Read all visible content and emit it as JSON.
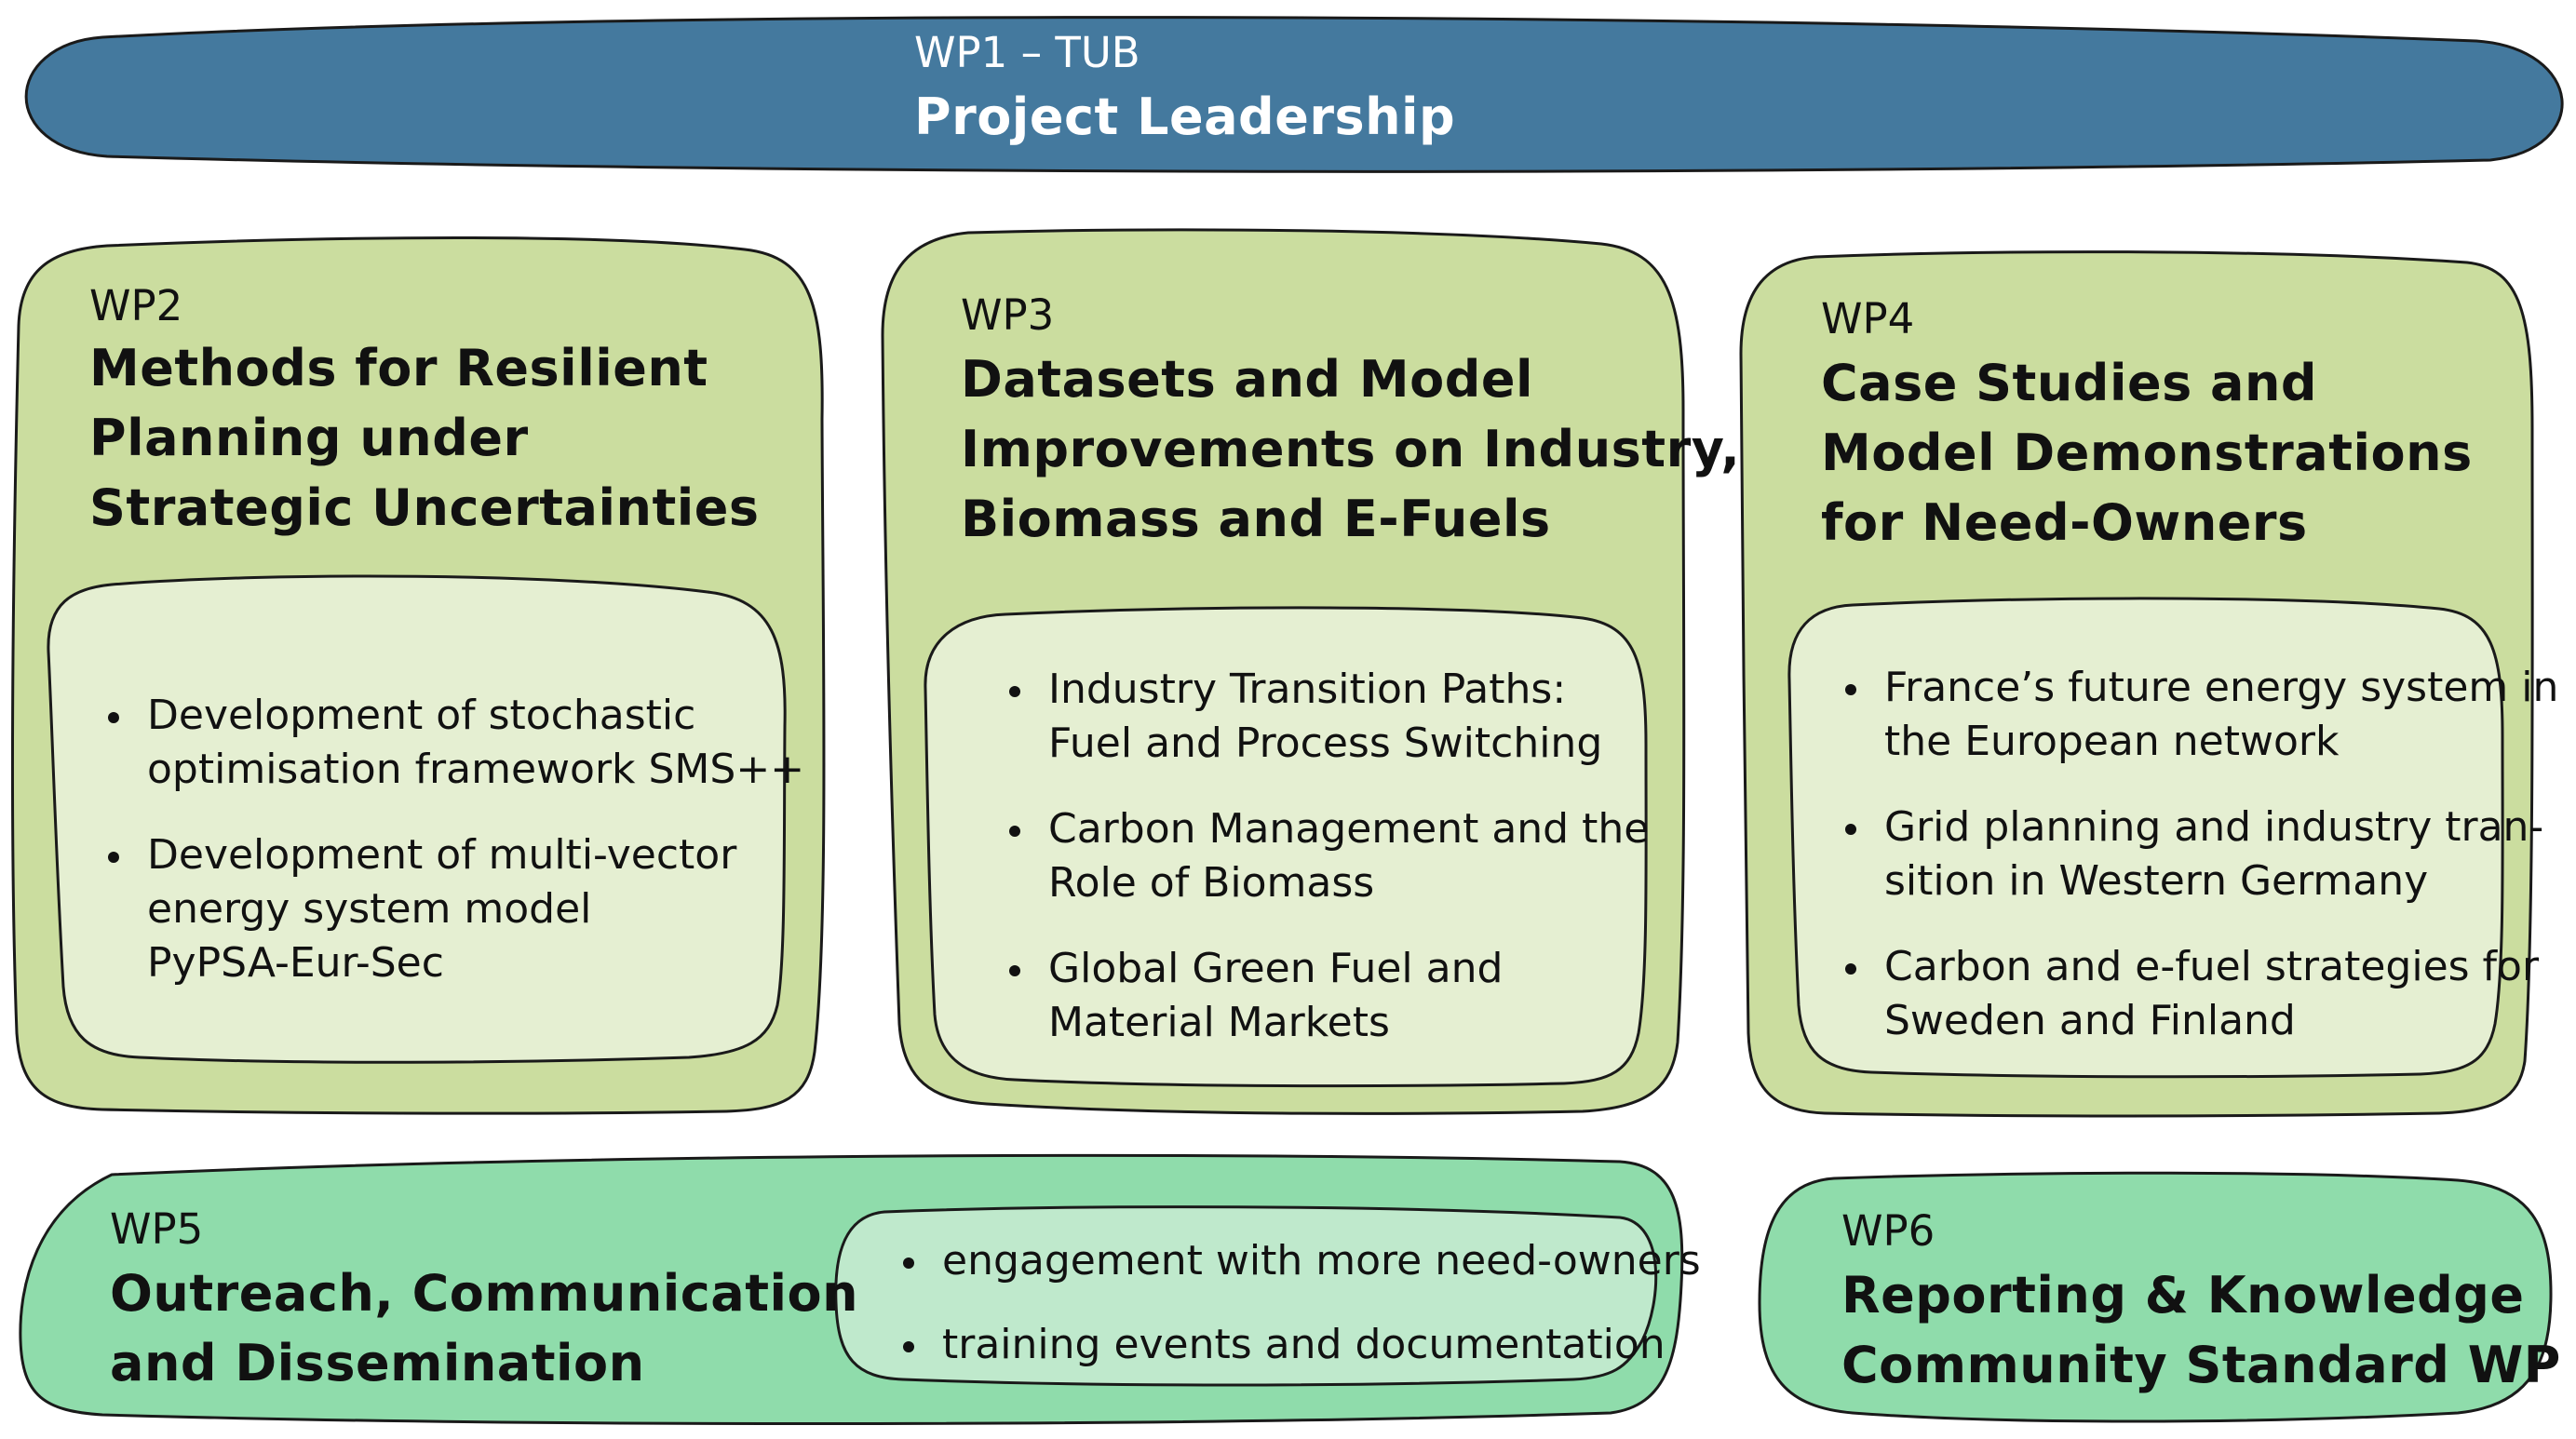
{
  "colors": {
    "leadership_fill": "#44799e",
    "research_fill": "#cbdd9f",
    "research_inner_fill": "#e5efd2",
    "outreach_fill": "#8fdcab",
    "outreach_inner_fill": "#bfe9cc"
  },
  "wp1": {
    "code": "WP1 – TUB",
    "title": "Project Leadership"
  },
  "wp2": {
    "code": "WP2",
    "title_lines": [
      "Methods for Resilient",
      "Planning under",
      "Strategic Uncertainties"
    ],
    "bullets": [
      {
        "lines": [
          "Development of stochastic",
          "optimisation framework SMS++"
        ]
      },
      {
        "lines": [
          "Development of multi-vector",
          "energy system model",
          "PyPSA-Eur-Sec"
        ]
      }
    ]
  },
  "wp3": {
    "code": "WP3",
    "title_lines": [
      "Datasets and Model",
      "Improvements on Industry,",
      "Biomass and E-Fuels"
    ],
    "bullets": [
      {
        "lines": [
          "Industry Transition Paths:",
          "Fuel and Process Switching"
        ]
      },
      {
        "lines": [
          "Carbon Management and the",
          "Role of Biomass"
        ]
      },
      {
        "lines": [
          "Global Green Fuel and",
          "Material Markets"
        ]
      }
    ]
  },
  "wp4": {
    "code": "WP4",
    "title_lines": [
      "Case Studies and",
      "Model Demonstrations",
      "for Need-Owners"
    ],
    "bullets": [
      {
        "lines": [
          "France’s future energy system in",
          "the European network"
        ]
      },
      {
        "lines": [
          "Grid planning and industry tran-",
          "sition in Western Germany"
        ]
      },
      {
        "lines": [
          "Carbon and e-fuel strategies for",
          "Sweden and Finland"
        ]
      }
    ]
  },
  "wp5": {
    "code": "WP5",
    "title_lines": [
      "Outreach, Communication",
      "and Dissemination"
    ],
    "bullets": [
      {
        "lines": [
          "engagement with more need-owners"
        ]
      },
      {
        "lines": [
          "training events and documentation"
        ]
      }
    ]
  },
  "wp6": {
    "code": "WP6",
    "title_lines": [
      "Reporting & Knowledge",
      "Community Standard WP"
    ]
  }
}
